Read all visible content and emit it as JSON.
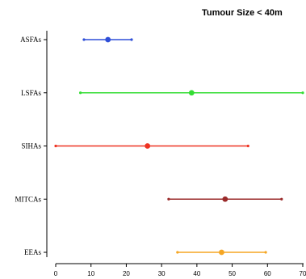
{
  "chart_data": {
    "type": "forest",
    "title": "Tumour Size < 40m",
    "xlabel": "",
    "ylabel": "",
    "xlim": [
      0,
      70
    ],
    "x_ticks": [
      0,
      10,
      20,
      30,
      40,
      50,
      60,
      70
    ],
    "x_tick_labels": [
      "0",
      "10",
      "20",
      "30",
      "40",
      "50",
      "60",
      "70"
    ],
    "grid": false,
    "legend": "none",
    "series": [
      {
        "category": "ASFAs",
        "estimate": 14.8,
        "lower": 8.0,
        "upper": 21.5,
        "color": "#2f4fd8"
      },
      {
        "category": "LSFAs",
        "estimate": 38.5,
        "lower": 7.0,
        "upper": 70.0,
        "color": "#33dd33"
      },
      {
        "category": "SIHAs",
        "estimate": 26.0,
        "lower": 0.0,
        "upper": 54.5,
        "color": "#ee3322"
      },
      {
        "category": "MITCAs",
        "estimate": 48.0,
        "lower": 32.0,
        "upper": 64.0,
        "color": "#9a2a2a"
      },
      {
        "category": "EEAs",
        "estimate": 47.0,
        "lower": 34.5,
        "upper": 59.5,
        "color": "#f5a623"
      }
    ]
  }
}
